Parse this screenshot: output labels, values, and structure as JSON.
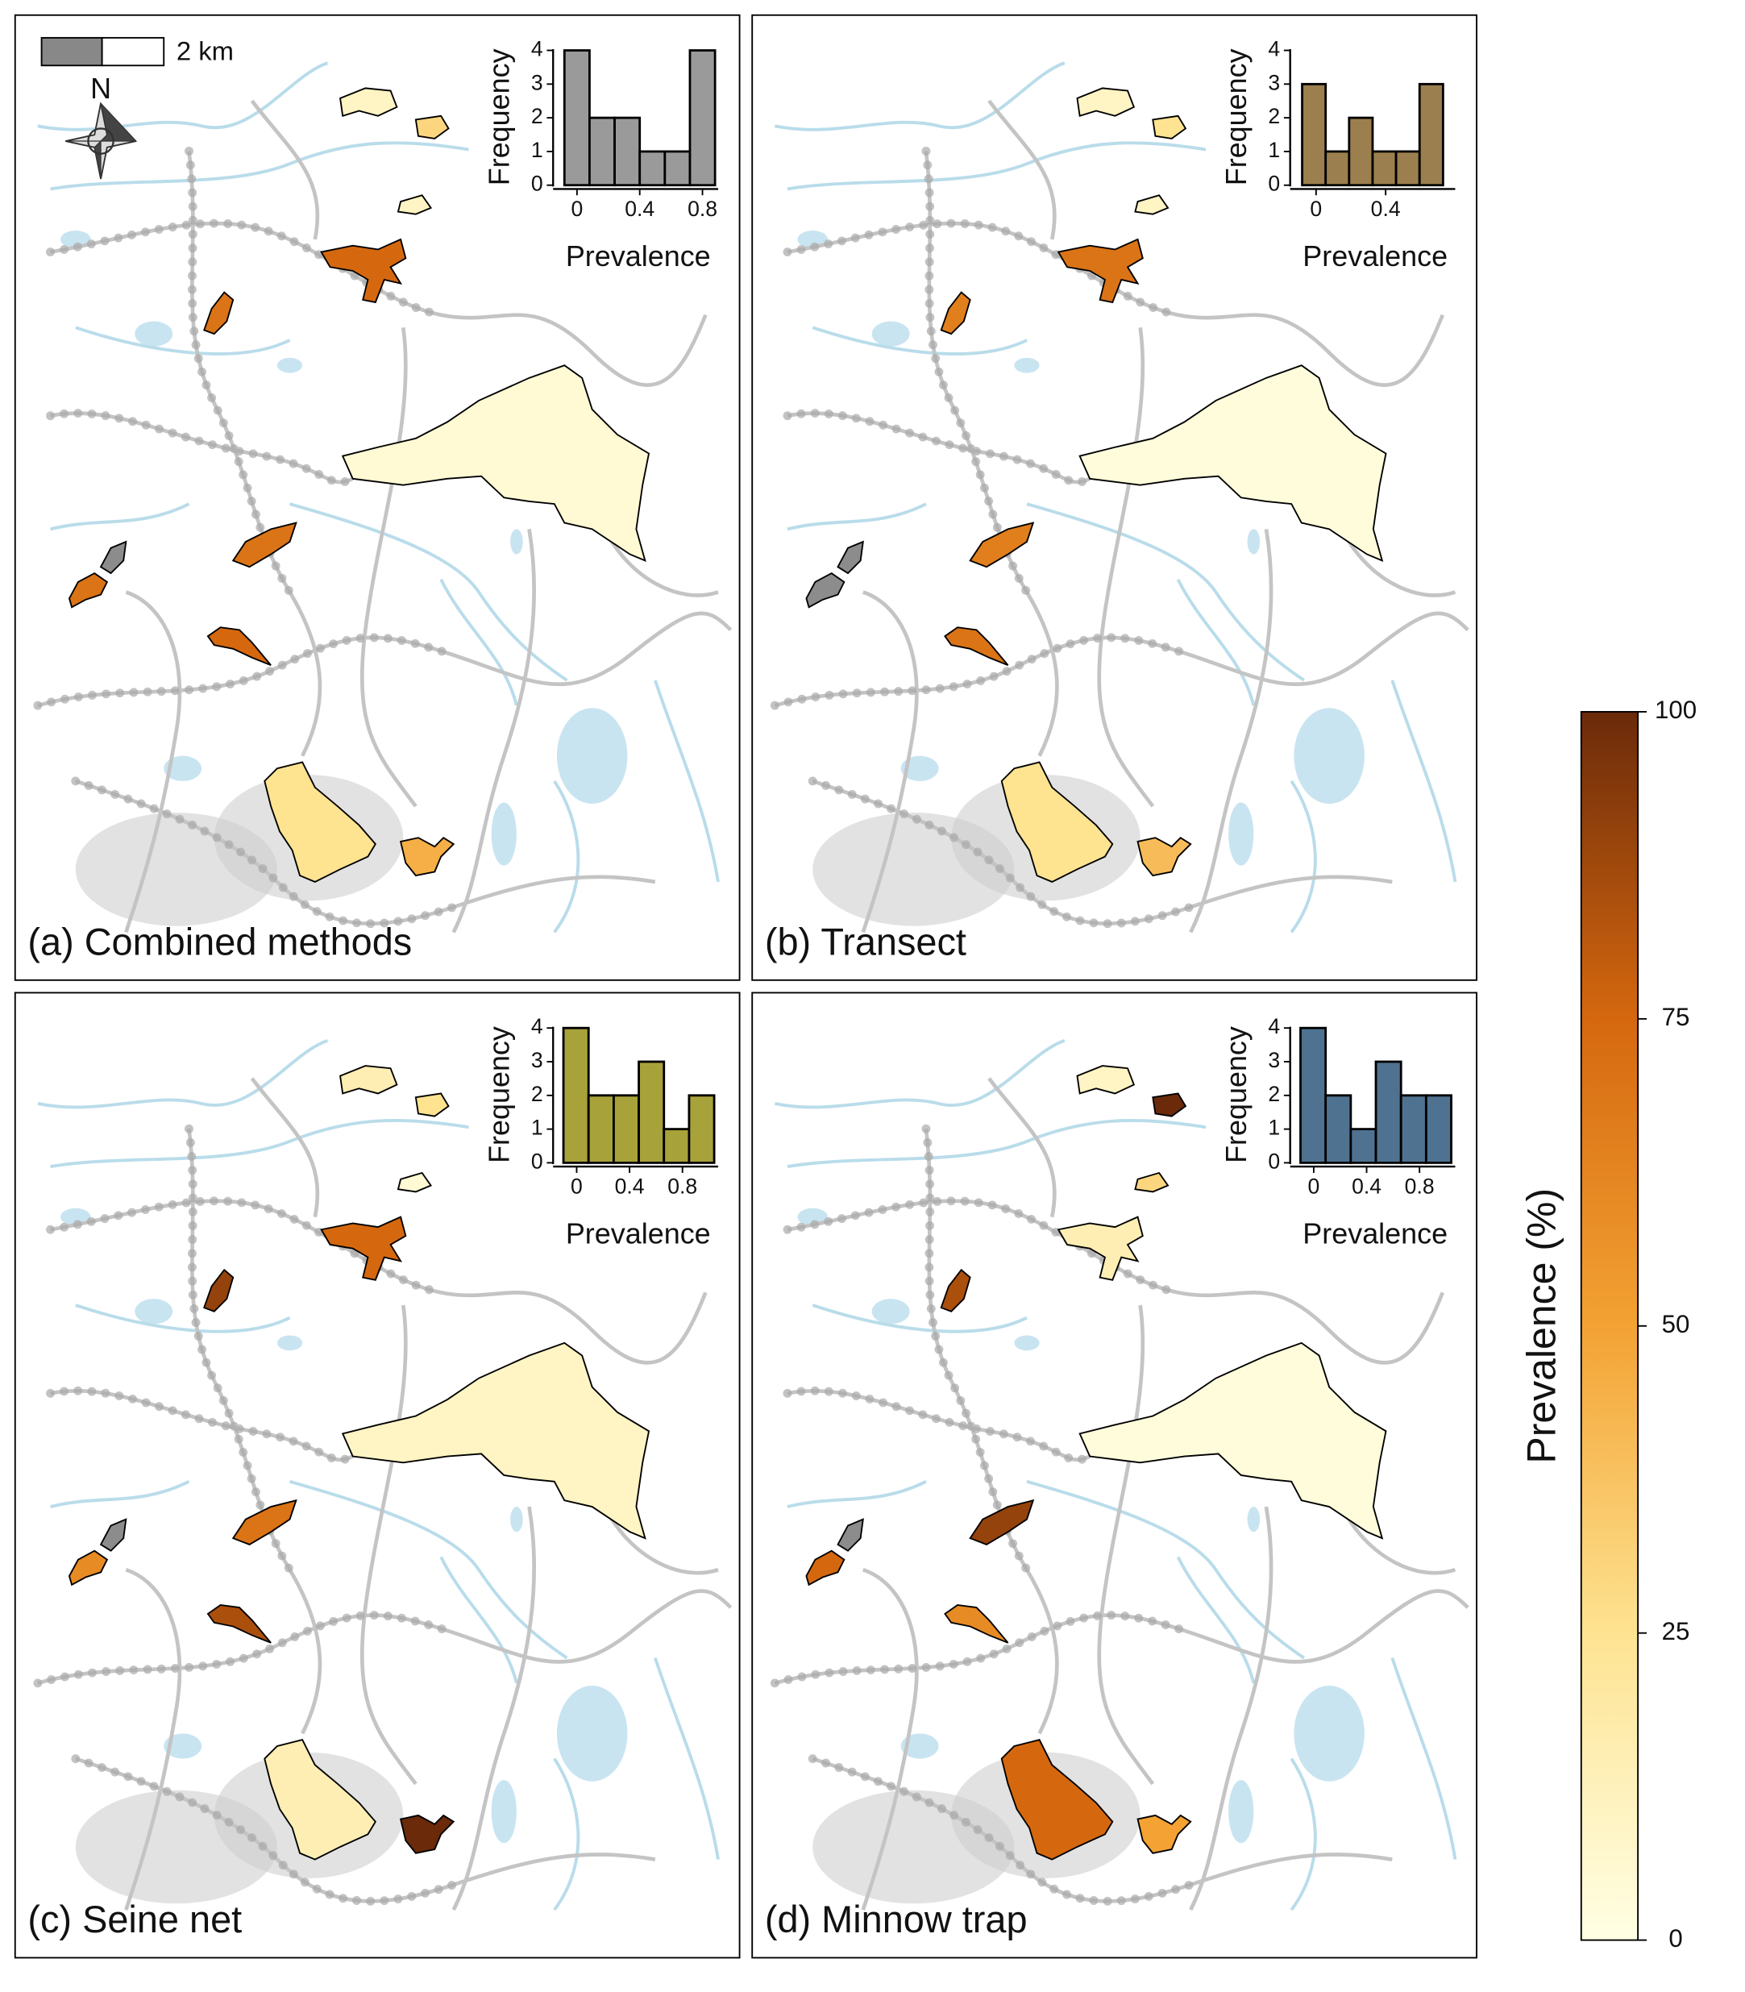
{
  "chart_data": [
    {
      "type": "histogram",
      "xlabel": "Prevalence",
      "ylabel": "Frequency",
      "color": "#9a9a9a",
      "bins": [
        -0.08,
        0.08,
        0.24,
        0.4,
        0.56,
        0.72,
        0.88
      ],
      "values": [
        4,
        2,
        2,
        1,
        1,
        4
      ],
      "xlim": [
        -0.12,
        0.9
      ],
      "ylim": [
        0,
        4
      ],
      "xticks": [
        0,
        0.4,
        0.8
      ],
      "yticks": [
        0,
        1,
        2,
        3,
        4
      ]
    },
    {
      "type": "histogram",
      "xlabel": "Prevalence",
      "ylabel": "Frequency",
      "color": "#9c7f4e",
      "bins": [
        -0.08,
        0.055,
        0.19,
        0.325,
        0.46,
        0.595,
        0.73
      ],
      "values": [
        3,
        1,
        2,
        1,
        1,
        3
      ],
      "xlim": [
        -0.12,
        0.8
      ],
      "ylim": [
        0,
        4
      ],
      "xticks": [
        0,
        0.4
      ],
      "yticks": [
        0,
        1,
        2,
        3,
        4
      ]
    },
    {
      "type": "histogram",
      "xlabel": "Prevalence",
      "ylabel": "Frequency",
      "color": "#a8a23a",
      "bins": [
        -0.1,
        0.09,
        0.28,
        0.47,
        0.66,
        0.85,
        1.04
      ],
      "values": [
        4,
        2,
        2,
        3,
        1,
        2
      ],
      "xlim": [
        -0.14,
        1.07
      ],
      "ylim": [
        0,
        4
      ],
      "xticks": [
        0,
        0.4,
        0.8
      ],
      "yticks": [
        0,
        1,
        2,
        3,
        4
      ]
    },
    {
      "type": "histogram",
      "xlabel": "Prevalence",
      "ylabel": "Frequency",
      "color": "#4f7290",
      "bins": [
        -0.1,
        0.09,
        0.28,
        0.47,
        0.66,
        0.85,
        1.04
      ],
      "values": [
        4,
        2,
        1,
        3,
        2,
        2
      ],
      "xlim": [
        -0.14,
        1.07
      ],
      "ylim": [
        0,
        4
      ],
      "xticks": [
        0,
        0.4,
        0.8
      ],
      "yticks": [
        0,
        1,
        2,
        3,
        4
      ]
    }
  ],
  "map": {
    "scale_bar": "2 km",
    "north": "N",
    "panels": [
      {
        "label": "(a) Combined methods",
        "prevalence": [
          10,
          30,
          10,
          75,
          70,
          5,
          70,
          null,
          70,
          75,
          25,
          45
        ]
      },
      {
        "label": "(b) Transect",
        "prevalence": [
          10,
          25,
          10,
          70,
          65,
          3,
          65,
          null,
          null,
          70,
          25,
          40
        ]
      },
      {
        "label": "(c) Seine net",
        "prevalence": [
          15,
          25,
          5,
          75,
          90,
          10,
          70,
          null,
          60,
          85,
          15,
          100
        ]
      },
      {
        "label": "(d) Minnow trap",
        "prevalence": [
          10,
          100,
          30,
          15,
          85,
          3,
          90,
          null,
          75,
          60,
          75,
          50
        ]
      }
    ],
    "colorbar": {
      "title": "Prevalence (%)",
      "lim": [
        0,
        100
      ],
      "ticks": [
        0,
        25,
        50,
        75,
        100
      ],
      "colors": [
        "#ffffe5",
        "#fee391",
        "#f3a233",
        "#d5680f",
        "#6b2a0a"
      ]
    }
  }
}
